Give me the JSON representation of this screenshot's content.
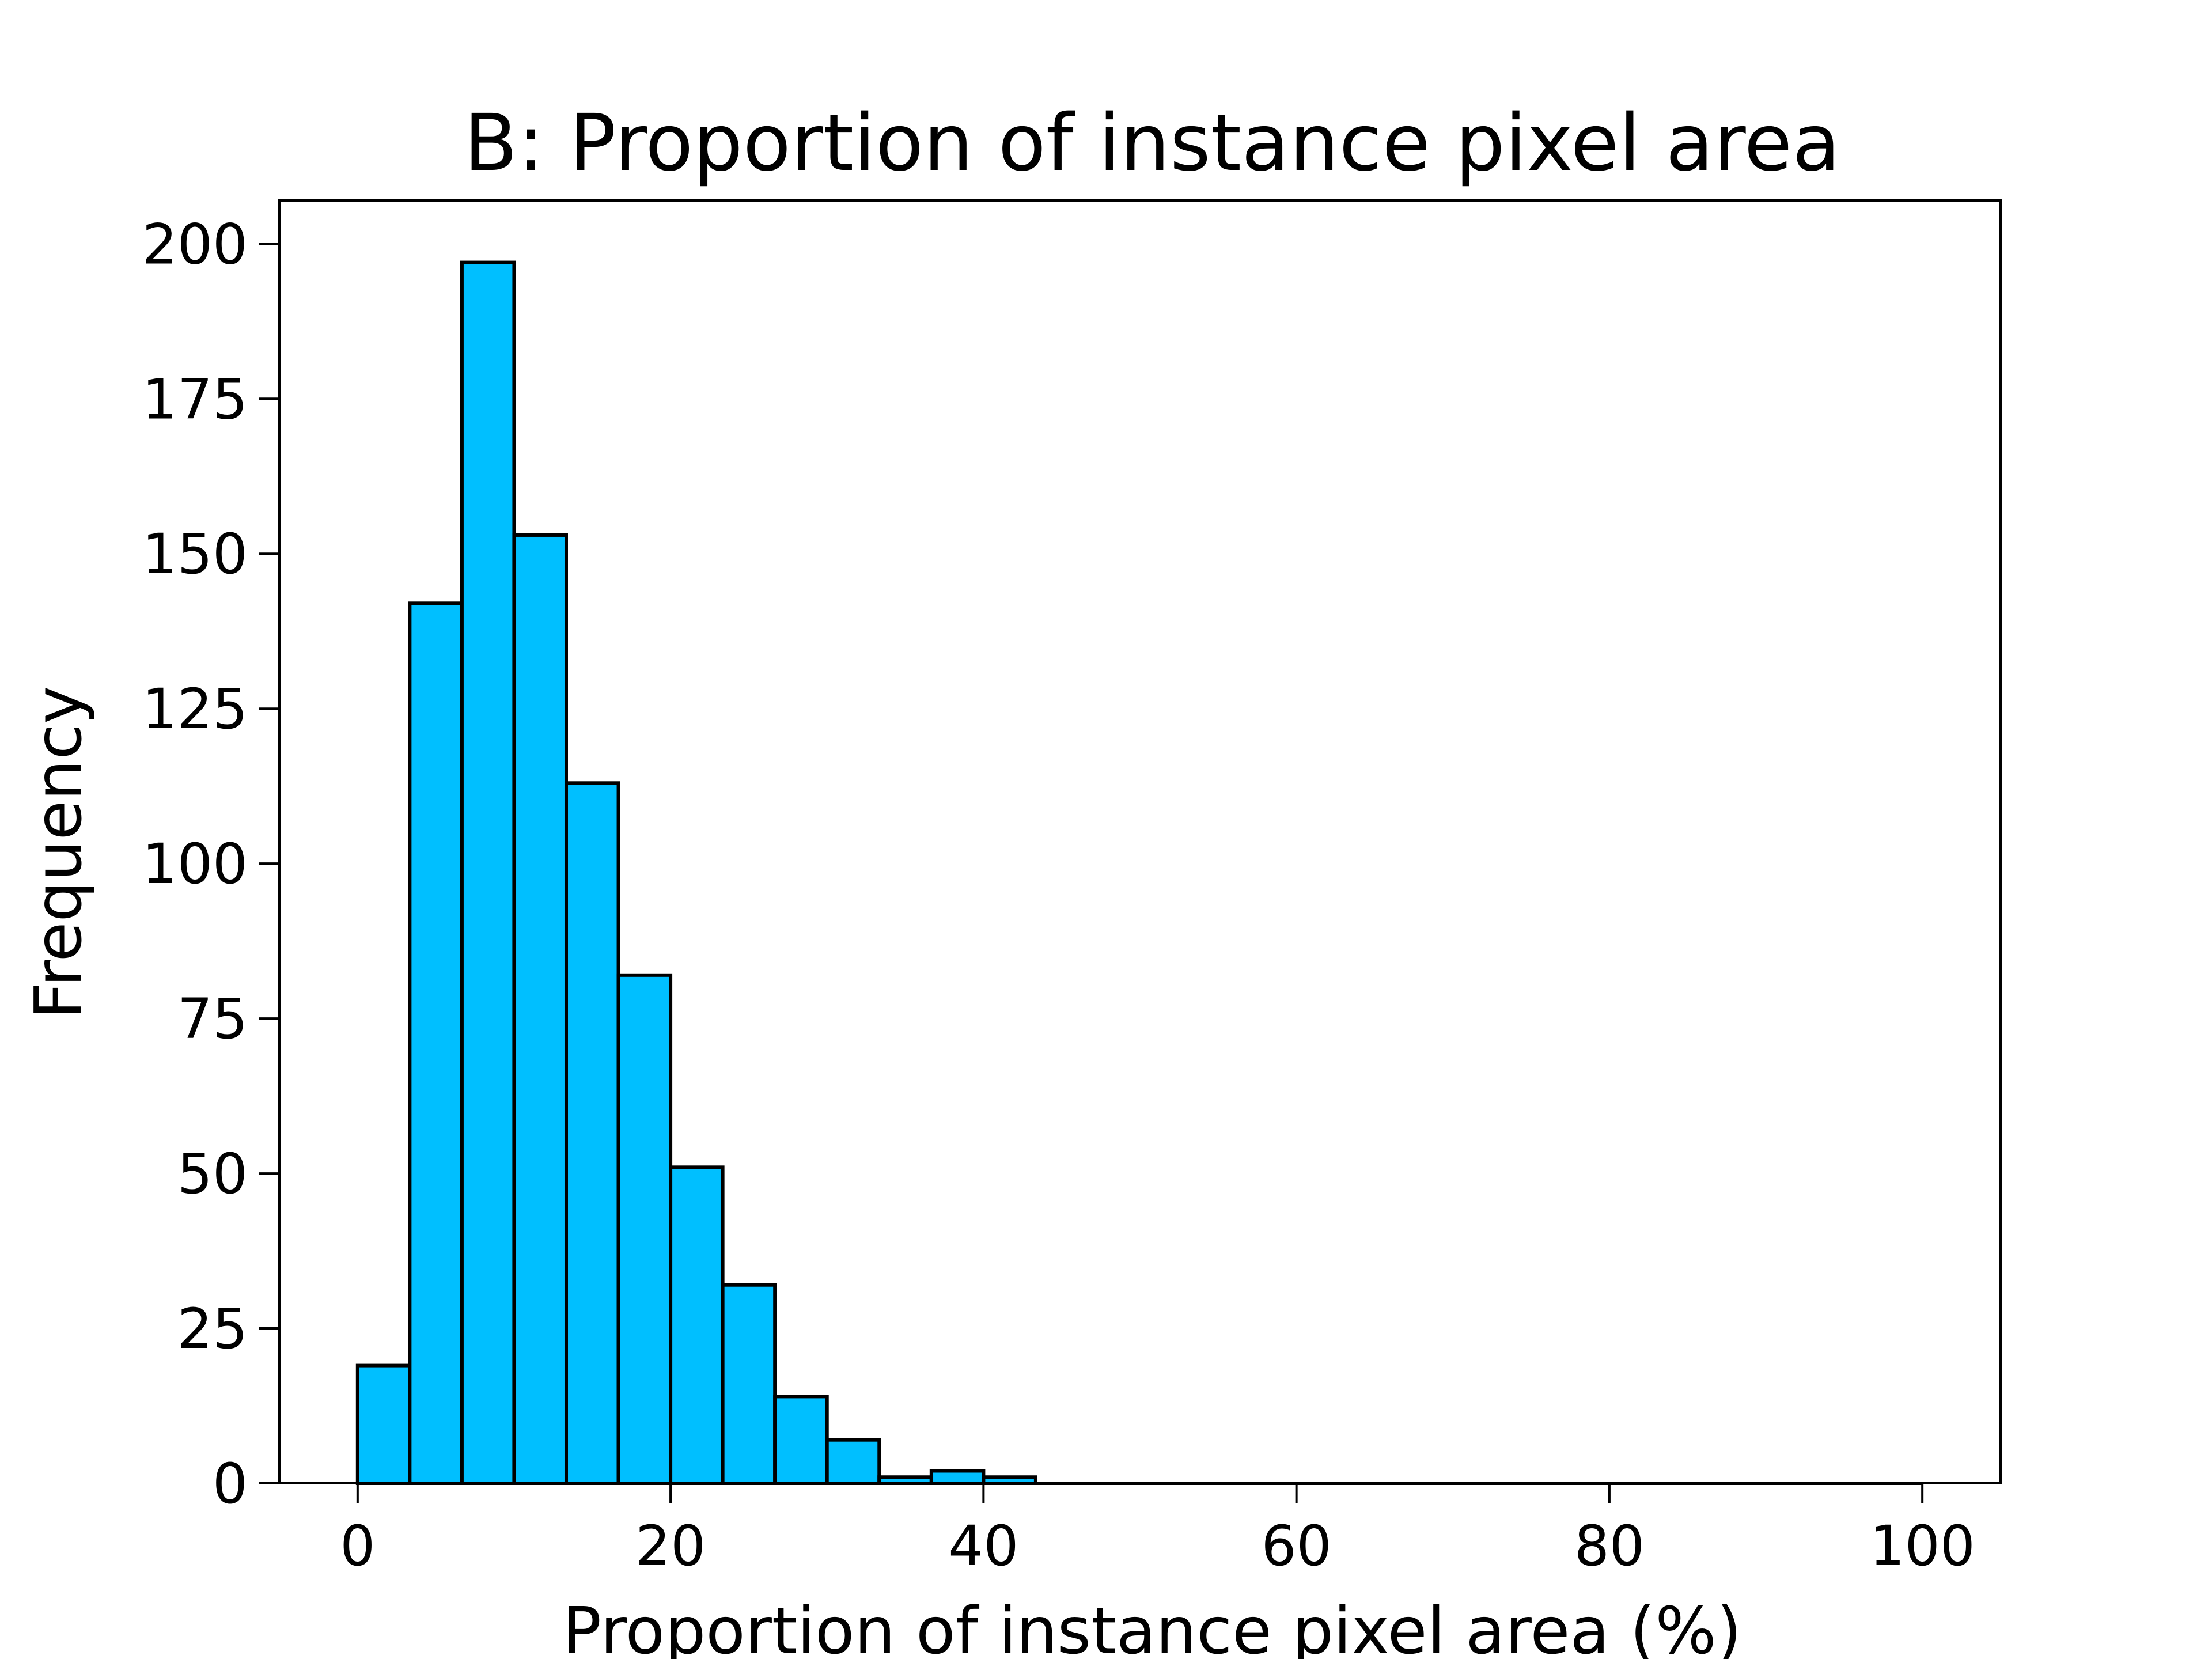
{
  "chart_data": {
    "type": "bar",
    "title": "B: Proportion of instance pixel area",
    "xlabel": "Proportion of instance pixel area (%)",
    "ylabel": "Frequency",
    "xlim": [
      -5,
      105
    ],
    "ylim": [
      0,
      207
    ],
    "bin_width": 3.333,
    "bins": [
      {
        "x0": 0.0,
        "x1": 3.333,
        "value": 19
      },
      {
        "x0": 3.333,
        "x1": 6.667,
        "value": 142
      },
      {
        "x0": 6.667,
        "x1": 10.0,
        "value": 197
      },
      {
        "x0": 10.0,
        "x1": 13.333,
        "value": 153
      },
      {
        "x0": 13.333,
        "x1": 16.667,
        "value": 113
      },
      {
        "x0": 16.667,
        "x1": 20.0,
        "value": 82
      },
      {
        "x0": 20.0,
        "x1": 23.333,
        "value": 51
      },
      {
        "x0": 23.333,
        "x1": 26.667,
        "value": 32
      },
      {
        "x0": 26.667,
        "x1": 30.0,
        "value": 14
      },
      {
        "x0": 30.0,
        "x1": 33.333,
        "value": 7
      },
      {
        "x0": 33.333,
        "x1": 36.667,
        "value": 1
      },
      {
        "x0": 36.667,
        "x1": 40.0,
        "value": 2
      },
      {
        "x0": 40.0,
        "x1": 43.333,
        "value": 1
      }
    ],
    "xticks": [
      {
        "value": 0,
        "label": "0"
      },
      {
        "value": 20,
        "label": "20"
      },
      {
        "value": 40,
        "label": "40"
      },
      {
        "value": 60,
        "label": "60"
      },
      {
        "value": 80,
        "label": "80"
      },
      {
        "value": 100,
        "label": "100"
      }
    ],
    "yticks": [
      {
        "value": 0,
        "label": "0"
      },
      {
        "value": 25,
        "label": "25"
      },
      {
        "value": 50,
        "label": "50"
      },
      {
        "value": 75,
        "label": "75"
      },
      {
        "value": 100,
        "label": "100"
      },
      {
        "value": 125,
        "label": "125"
      },
      {
        "value": 150,
        "label": "150"
      },
      {
        "value": 175,
        "label": "175"
      },
      {
        "value": 200,
        "label": "200"
      }
    ],
    "baseline_to": 100,
    "grid": false,
    "bar_color": "#00BFFF",
    "edge_color": "#000000"
  }
}
